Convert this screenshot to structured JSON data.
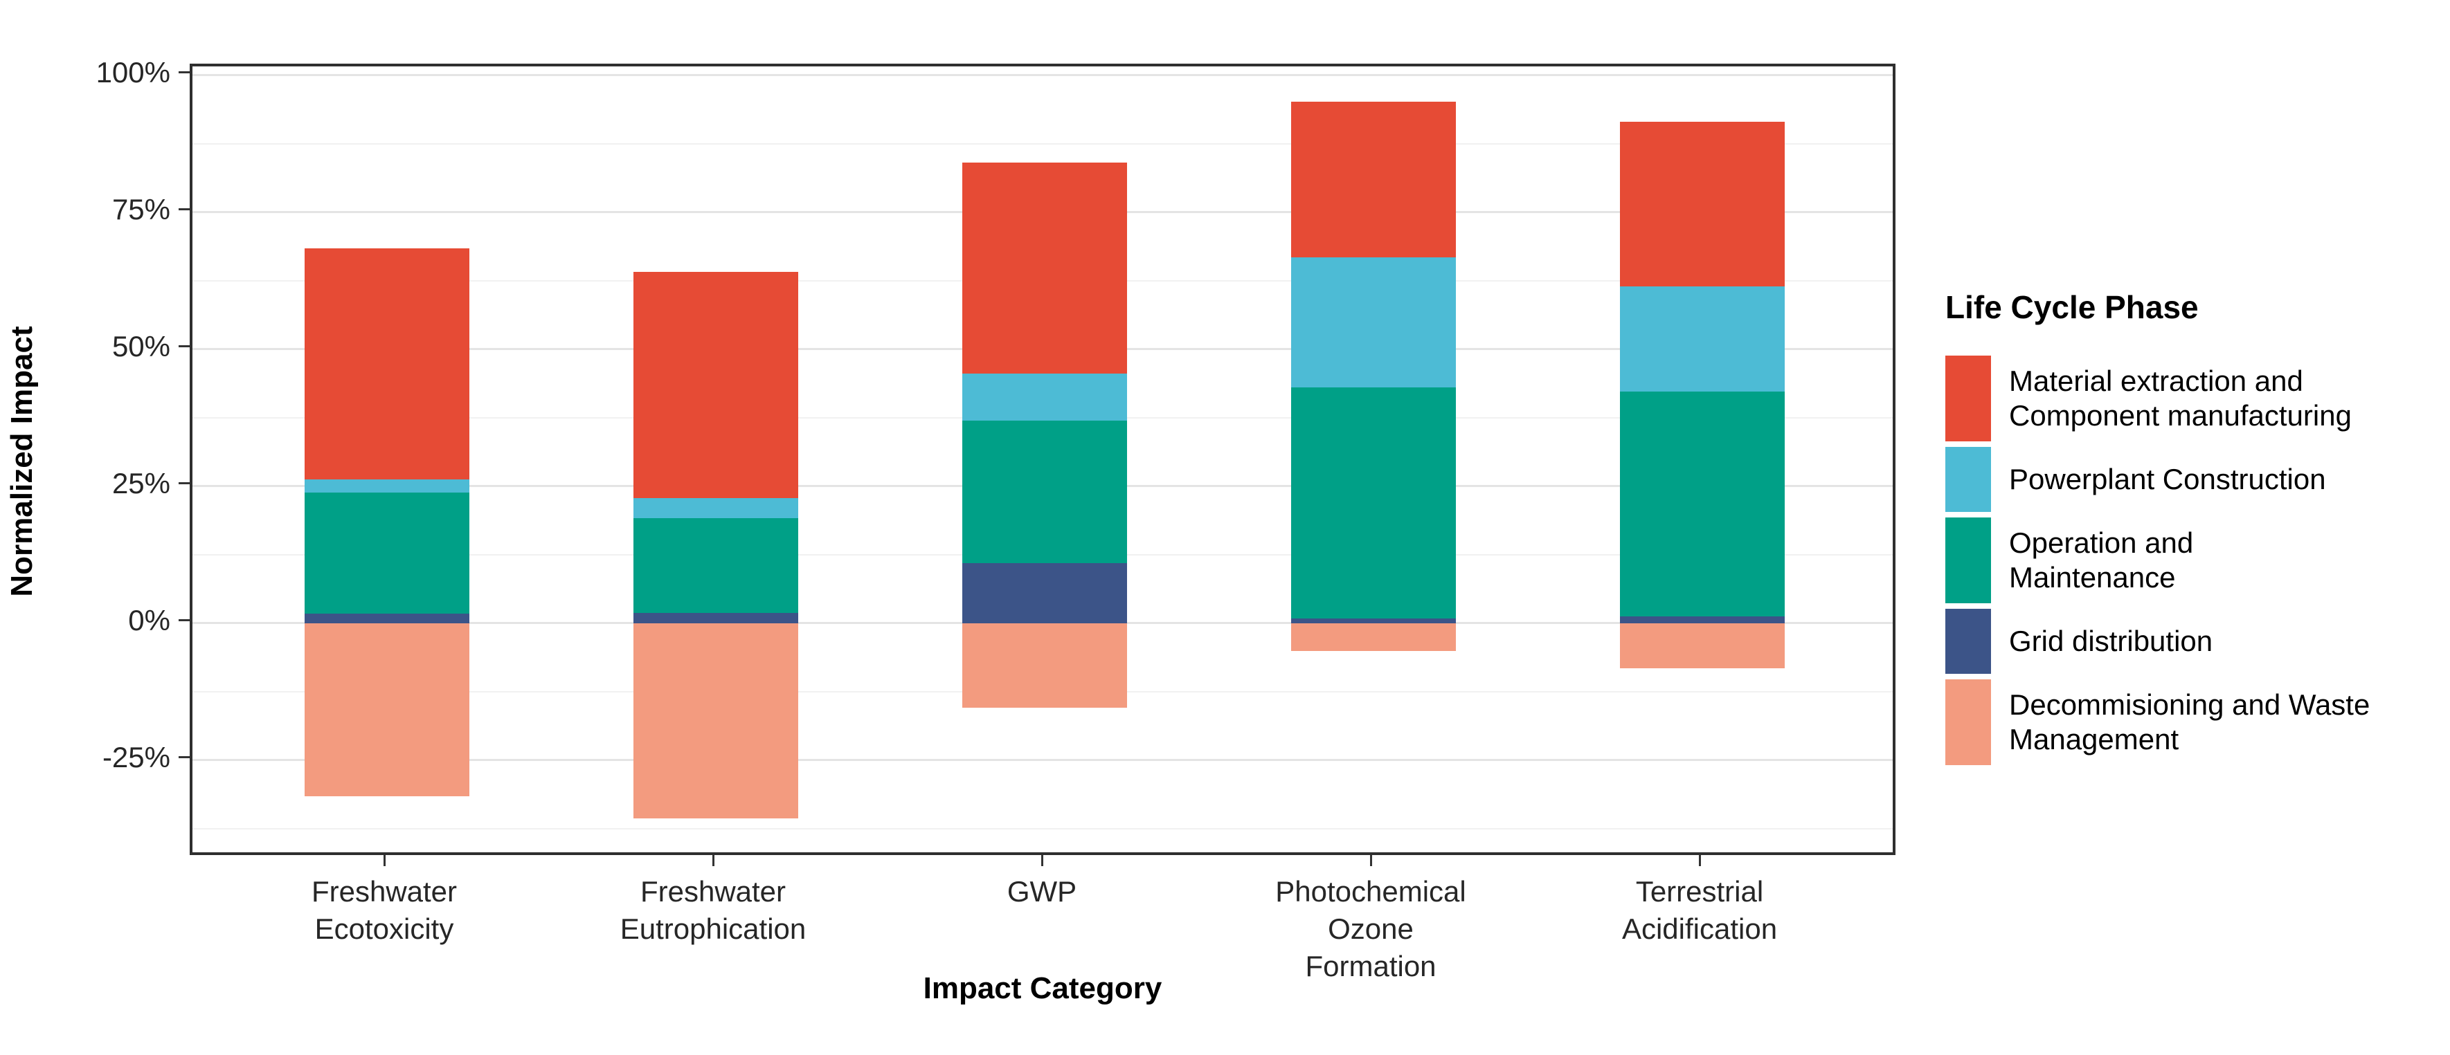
{
  "chart_data": {
    "type": "bar",
    "stacked": true,
    "title": "",
    "xlabel": "Impact Category",
    "ylabel": "Normalized Impact",
    "legend_title": "Life Cycle Phase",
    "legend_position": "right",
    "grid": true,
    "unit": "%",
    "ylim": [
      -42.8,
      101.6
    ],
    "y_ticks": [
      {
        "label": "100%",
        "value": 100
      },
      {
        "label": "75%",
        "value": 75
      },
      {
        "label": "50%",
        "value": 50
      },
      {
        "label": "25%",
        "value": 25
      },
      {
        "label": "0%",
        "value": 0
      },
      {
        "label": "-25%",
        "value": -25
      }
    ],
    "y_minor_ticks": [
      87.5,
      62.5,
      37.5,
      12.5,
      -12.5,
      -37.5
    ],
    "categories": [
      {
        "name": "Freshwater Ecotoxicity",
        "label_lines": [
          "Freshwater",
          "Ecotoxicity"
        ]
      },
      {
        "name": "Freshwater Eutrophication",
        "label_lines": [
          "Freshwater",
          "Eutrophication"
        ]
      },
      {
        "name": "GWP",
        "label_lines": [
          "GWP"
        ]
      },
      {
        "name": "Photochemical Ozone Formation",
        "label_lines": [
          "Photochemical",
          "Ozone",
          "Formation"
        ]
      },
      {
        "name": "Terrestrial Acidification",
        "label_lines": [
          "Terrestrial",
          "Acidification"
        ]
      }
    ],
    "series": [
      {
        "name": "Material extraction and Component manufacturing",
        "label_lines": [
          "Material extraction and",
          "Component manufacturing"
        ],
        "color": "#E64B35",
        "values": [
          42.1,
          41.3,
          38.5,
          28.4,
          30.0
        ]
      },
      {
        "name": "Powerplant Construction",
        "label_lines": [
          "Powerplant Construction"
        ],
        "color": "#4DBBD5",
        "values": [
          2.4,
          3.6,
          8.5,
          23.8,
          19.2
        ]
      },
      {
        "name": "Operation and Maintenance",
        "label_lines": [
          "Operation and",
          "Maintenance"
        ],
        "color": "#00A087",
        "values": [
          22.1,
          17.3,
          26.0,
          42.1,
          41.0
        ]
      },
      {
        "name": "Grid distribution",
        "label_lines": [
          "Grid distribution"
        ],
        "color": "#3C5488",
        "values": [
          1.8,
          1.9,
          11.0,
          0.9,
          1.3
        ]
      },
      {
        "name": "Decommisioning and Waste Management",
        "label_lines": [
          "Decommisioning and Waste",
          "Management"
        ],
        "color": "#F39B7F",
        "values": [
          -31.6,
          -35.6,
          -15.4,
          -5.0,
          -8.2
        ]
      }
    ],
    "colors": {
      "grid_major": "#E4E4E4",
      "grid_minor": "#F1F1F1",
      "panel_border": "#2F2F2F",
      "tick": "#333333",
      "text": "#000000"
    }
  }
}
